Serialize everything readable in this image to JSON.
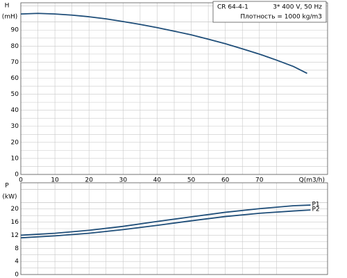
{
  "chart_data": [
    {
      "type": "line",
      "ylabel": "H",
      "yunit": "(mH)",
      "xlabel": "Q(m3/h)",
      "annotations": [
        "CR 64-4-1",
        "3* 400 V, 50 Hz",
        "Плотность = 1000 kg/m3"
      ],
      "x": [
        0,
        5,
        10,
        15,
        20,
        25,
        30,
        35,
        40,
        45,
        50,
        55,
        60,
        65,
        70,
        75,
        80,
        84
      ],
      "values": [
        100,
        100.4,
        100,
        99.3,
        98.3,
        97,
        95.3,
        93.5,
        91.5,
        89.3,
        87,
        84.3,
        81.5,
        78.3,
        75,
        71.3,
        67.3,
        63
      ],
      "color": "#1f4e79",
      "xlim": [
        0,
        90
      ],
      "xticks": [
        0,
        10,
        20,
        30,
        40,
        50,
        60,
        70
      ],
      "ylim": [
        0,
        107
      ],
      "yticks": [
        0,
        10,
        20,
        30,
        40,
        50,
        60,
        70,
        80,
        90
      ],
      "grid": true
    },
    {
      "type": "line",
      "ylabel": "P",
      "yunit": "(kW)",
      "x": [
        0,
        10,
        20,
        30,
        40,
        50,
        60,
        70,
        80,
        85
      ],
      "series": [
        {
          "name": "P1",
          "color": "#1f4e79",
          "values": [
            12,
            12.6,
            13.5,
            14.7,
            16.2,
            17.6,
            19,
            20.1,
            21,
            21.2
          ]
        },
        {
          "name": "P2",
          "color": "#1f4e79",
          "values": [
            11.2,
            11.8,
            12.6,
            13.7,
            15,
            16.4,
            17.7,
            18.7,
            19.4,
            19.7
          ]
        }
      ],
      "xlim": [
        0,
        90
      ],
      "xticks": [
        0,
        10,
        20,
        30,
        40,
        50,
        60,
        70
      ],
      "ylim": [
        0,
        28
      ],
      "yticks": [
        0,
        4,
        8,
        12,
        16,
        20
      ],
      "grid": true
    }
  ]
}
